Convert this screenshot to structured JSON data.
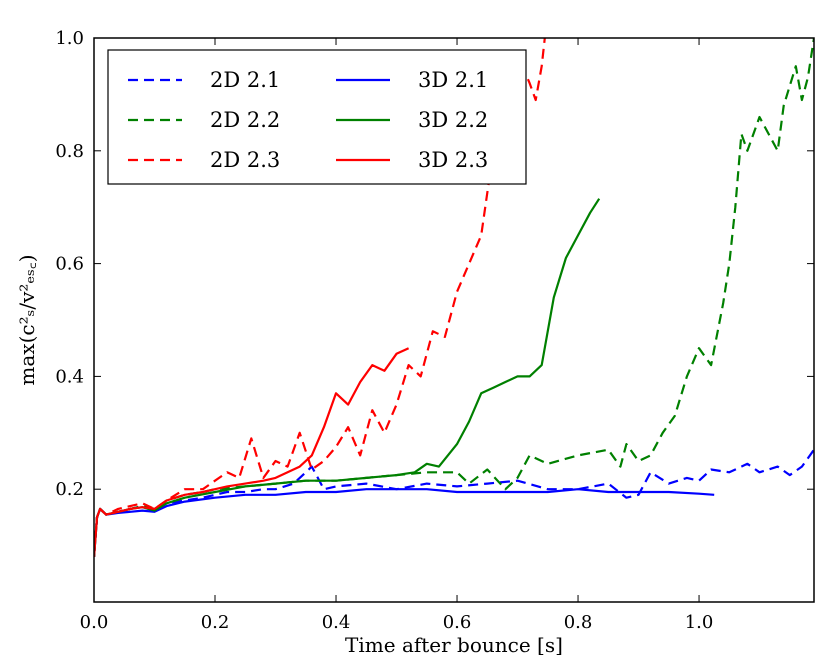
{
  "chart_data": {
    "type": "line",
    "title": "",
    "xlabel": "Time after bounce [s]",
    "ylabel": "max(c²ₛ/v²ₑₛ꜀)",
    "xlim": [
      0.0,
      1.19
    ],
    "ylim": [
      0.0,
      1.0
    ],
    "xticks": [
      0.0,
      0.2,
      0.4,
      0.6,
      0.8,
      1.0
    ],
    "xtick_labels": [
      "0.0",
      "0.2",
      "0.4",
      "0.6",
      "0.8",
      "1.0"
    ],
    "yticks": [
      0.2,
      0.4,
      0.6,
      0.8,
      1.0
    ],
    "ytick_labels": [
      "0.2",
      "0.4",
      "0.6",
      "0.8",
      "1.0"
    ],
    "grid": false,
    "legend_position": "top-left",
    "series": [
      {
        "name": "2D 2.1",
        "color": "#0000ff",
        "style": "dashed",
        "points": [
          [
            0.0,
            0.08
          ],
          [
            0.005,
            0.15
          ],
          [
            0.01,
            0.165
          ],
          [
            0.02,
            0.155
          ],
          [
            0.04,
            0.16
          ],
          [
            0.06,
            0.165
          ],
          [
            0.08,
            0.17
          ],
          [
            0.1,
            0.16
          ],
          [
            0.12,
            0.175
          ],
          [
            0.15,
            0.18
          ],
          [
            0.18,
            0.185
          ],
          [
            0.2,
            0.19
          ],
          [
            0.22,
            0.195
          ],
          [
            0.25,
            0.195
          ],
          [
            0.28,
            0.2
          ],
          [
            0.3,
            0.2
          ],
          [
            0.33,
            0.21
          ],
          [
            0.36,
            0.24
          ],
          [
            0.38,
            0.2
          ],
          [
            0.4,
            0.205
          ],
          [
            0.45,
            0.21
          ],
          [
            0.5,
            0.2
          ],
          [
            0.55,
            0.21
          ],
          [
            0.6,
            0.205
          ],
          [
            0.65,
            0.21
          ],
          [
            0.7,
            0.215
          ],
          [
            0.75,
            0.2
          ],
          [
            0.8,
            0.2
          ],
          [
            0.85,
            0.21
          ],
          [
            0.88,
            0.185
          ],
          [
            0.9,
            0.19
          ],
          [
            0.92,
            0.23
          ],
          [
            0.95,
            0.21
          ],
          [
            0.98,
            0.22
          ],
          [
            1.0,
            0.215
          ],
          [
            1.02,
            0.235
          ],
          [
            1.05,
            0.23
          ],
          [
            1.08,
            0.245
          ],
          [
            1.1,
            0.23
          ],
          [
            1.13,
            0.24
          ],
          [
            1.15,
            0.225
          ],
          [
            1.17,
            0.24
          ],
          [
            1.19,
            0.27
          ]
        ]
      },
      {
        "name": "2D 2.2",
        "color": "#008000",
        "style": "dashed",
        "points": [
          [
            0.0,
            0.08
          ],
          [
            0.005,
            0.15
          ],
          [
            0.01,
            0.165
          ],
          [
            0.02,
            0.155
          ],
          [
            0.04,
            0.16
          ],
          [
            0.06,
            0.165
          ],
          [
            0.08,
            0.17
          ],
          [
            0.1,
            0.165
          ],
          [
            0.12,
            0.18
          ],
          [
            0.15,
            0.19
          ],
          [
            0.18,
            0.195
          ],
          [
            0.2,
            0.2
          ],
          [
            0.25,
            0.205
          ],
          [
            0.3,
            0.21
          ],
          [
            0.35,
            0.215
          ],
          [
            0.4,
            0.215
          ],
          [
            0.45,
            0.22
          ],
          [
            0.5,
            0.225
          ],
          [
            0.55,
            0.23
          ],
          [
            0.6,
            0.23
          ],
          [
            0.62,
            0.21
          ],
          [
            0.65,
            0.235
          ],
          [
            0.68,
            0.2
          ],
          [
            0.7,
            0.22
          ],
          [
            0.72,
            0.26
          ],
          [
            0.75,
            0.245
          ],
          [
            0.8,
            0.26
          ],
          [
            0.85,
            0.27
          ],
          [
            0.87,
            0.24
          ],
          [
            0.88,
            0.28
          ],
          [
            0.9,
            0.25
          ],
          [
            0.92,
            0.26
          ],
          [
            0.94,
            0.3
          ],
          [
            0.96,
            0.33
          ],
          [
            0.98,
            0.4
          ],
          [
            1.0,
            0.45
          ],
          [
            1.02,
            0.42
          ],
          [
            1.04,
            0.53
          ],
          [
            1.05,
            0.6
          ],
          [
            1.06,
            0.7
          ],
          [
            1.07,
            0.83
          ],
          [
            1.08,
            0.8
          ],
          [
            1.1,
            0.86
          ],
          [
            1.12,
            0.82
          ],
          [
            1.13,
            0.8
          ],
          [
            1.14,
            0.88
          ],
          [
            1.16,
            0.95
          ],
          [
            1.17,
            0.89
          ],
          [
            1.18,
            0.93
          ],
          [
            1.19,
            1.0
          ]
        ]
      },
      {
        "name": "2D 2.3",
        "color": "#ff0000",
        "style": "dashed",
        "points": [
          [
            0.0,
            0.08
          ],
          [
            0.005,
            0.15
          ],
          [
            0.01,
            0.165
          ],
          [
            0.02,
            0.155
          ],
          [
            0.04,
            0.165
          ],
          [
            0.06,
            0.17
          ],
          [
            0.08,
            0.175
          ],
          [
            0.1,
            0.165
          ],
          [
            0.12,
            0.18
          ],
          [
            0.15,
            0.2
          ],
          [
            0.18,
            0.2
          ],
          [
            0.2,
            0.215
          ],
          [
            0.22,
            0.23
          ],
          [
            0.24,
            0.22
          ],
          [
            0.26,
            0.29
          ],
          [
            0.28,
            0.22
          ],
          [
            0.3,
            0.25
          ],
          [
            0.32,
            0.24
          ],
          [
            0.34,
            0.3
          ],
          [
            0.36,
            0.235
          ],
          [
            0.38,
            0.25
          ],
          [
            0.4,
            0.275
          ],
          [
            0.42,
            0.31
          ],
          [
            0.44,
            0.26
          ],
          [
            0.46,
            0.34
          ],
          [
            0.48,
            0.3
          ],
          [
            0.5,
            0.35
          ],
          [
            0.52,
            0.42
          ],
          [
            0.54,
            0.4
          ],
          [
            0.56,
            0.48
          ],
          [
            0.58,
            0.47
          ],
          [
            0.6,
            0.55
          ],
          [
            0.62,
            0.6
          ],
          [
            0.64,
            0.65
          ],
          [
            0.66,
            0.8
          ],
          [
            0.68,
            0.9
          ],
          [
            0.7,
            0.97
          ],
          [
            0.72,
            0.92
          ],
          [
            0.73,
            0.89
          ],
          [
            0.74,
            0.95
          ],
          [
            0.745,
            1.0
          ]
        ]
      },
      {
        "name": "3D 2.1",
        "color": "#0000ff",
        "style": "solid",
        "points": [
          [
            0.0,
            0.08
          ],
          [
            0.005,
            0.15
          ],
          [
            0.01,
            0.165
          ],
          [
            0.02,
            0.155
          ],
          [
            0.04,
            0.158
          ],
          [
            0.06,
            0.16
          ],
          [
            0.08,
            0.162
          ],
          [
            0.1,
            0.16
          ],
          [
            0.12,
            0.17
          ],
          [
            0.15,
            0.178
          ],
          [
            0.2,
            0.185
          ],
          [
            0.25,
            0.19
          ],
          [
            0.3,
            0.19
          ],
          [
            0.35,
            0.195
          ],
          [
            0.4,
            0.195
          ],
          [
            0.45,
            0.2
          ],
          [
            0.5,
            0.2
          ],
          [
            0.55,
            0.2
          ],
          [
            0.6,
            0.195
          ],
          [
            0.65,
            0.195
          ],
          [
            0.7,
            0.195
          ],
          [
            0.75,
            0.195
          ],
          [
            0.8,
            0.2
          ],
          [
            0.85,
            0.195
          ],
          [
            0.9,
            0.195
          ],
          [
            0.95,
            0.195
          ],
          [
            1.0,
            0.192
          ],
          [
            1.025,
            0.19
          ]
        ]
      },
      {
        "name": "3D 2.2",
        "color": "#008000",
        "style": "solid",
        "points": [
          [
            0.0,
            0.08
          ],
          [
            0.005,
            0.15
          ],
          [
            0.01,
            0.165
          ],
          [
            0.02,
            0.155
          ],
          [
            0.04,
            0.16
          ],
          [
            0.06,
            0.165
          ],
          [
            0.08,
            0.168
          ],
          [
            0.1,
            0.162
          ],
          [
            0.12,
            0.175
          ],
          [
            0.15,
            0.185
          ],
          [
            0.2,
            0.195
          ],
          [
            0.25,
            0.205
          ],
          [
            0.3,
            0.21
          ],
          [
            0.35,
            0.215
          ],
          [
            0.4,
            0.215
          ],
          [
            0.45,
            0.22
          ],
          [
            0.5,
            0.225
          ],
          [
            0.53,
            0.23
          ],
          [
            0.55,
            0.245
          ],
          [
            0.57,
            0.24
          ],
          [
            0.6,
            0.28
          ],
          [
            0.62,
            0.32
          ],
          [
            0.64,
            0.37
          ],
          [
            0.66,
            0.38
          ],
          [
            0.68,
            0.39
          ],
          [
            0.7,
            0.4
          ],
          [
            0.72,
            0.4
          ],
          [
            0.74,
            0.42
          ],
          [
            0.76,
            0.54
          ],
          [
            0.78,
            0.61
          ],
          [
            0.8,
            0.65
          ],
          [
            0.82,
            0.69
          ],
          [
            0.835,
            0.715
          ]
        ]
      },
      {
        "name": "3D 2.3",
        "color": "#ff0000",
        "style": "solid",
        "points": [
          [
            0.0,
            0.08
          ],
          [
            0.005,
            0.15
          ],
          [
            0.01,
            0.165
          ],
          [
            0.02,
            0.155
          ],
          [
            0.04,
            0.16
          ],
          [
            0.06,
            0.165
          ],
          [
            0.08,
            0.168
          ],
          [
            0.1,
            0.165
          ],
          [
            0.12,
            0.18
          ],
          [
            0.15,
            0.19
          ],
          [
            0.18,
            0.195
          ],
          [
            0.2,
            0.2
          ],
          [
            0.22,
            0.205
          ],
          [
            0.25,
            0.21
          ],
          [
            0.28,
            0.215
          ],
          [
            0.3,
            0.22
          ],
          [
            0.32,
            0.23
          ],
          [
            0.34,
            0.24
          ],
          [
            0.36,
            0.26
          ],
          [
            0.38,
            0.31
          ],
          [
            0.4,
            0.37
          ],
          [
            0.42,
            0.35
          ],
          [
            0.44,
            0.39
          ],
          [
            0.46,
            0.42
          ],
          [
            0.48,
            0.41
          ],
          [
            0.5,
            0.44
          ],
          [
            0.52,
            0.45
          ]
        ]
      }
    ]
  }
}
